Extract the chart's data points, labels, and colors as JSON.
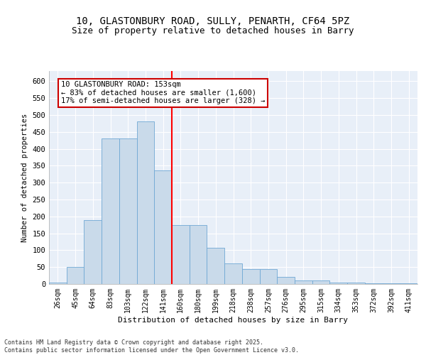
{
  "title1": "10, GLASTONBURY ROAD, SULLY, PENARTH, CF64 5PZ",
  "title2": "Size of property relative to detached houses in Barry",
  "xlabel": "Distribution of detached houses by size in Barry",
  "ylabel": "Number of detached properties",
  "categories": [
    "26sqm",
    "45sqm",
    "64sqm",
    "83sqm",
    "103sqm",
    "122sqm",
    "141sqm",
    "160sqm",
    "180sqm",
    "199sqm",
    "218sqm",
    "238sqm",
    "257sqm",
    "276sqm",
    "295sqm",
    "315sqm",
    "334sqm",
    "353sqm",
    "372sqm",
    "392sqm",
    "411sqm"
  ],
  "values": [
    5,
    50,
    190,
    430,
    430,
    480,
    335,
    175,
    175,
    108,
    60,
    45,
    45,
    20,
    10,
    10,
    5,
    5,
    3,
    2,
    3
  ],
  "bar_color": "#c9daea",
  "bar_edge_color": "#6fa8d4",
  "vline_color": "red",
  "annotation_text": "10 GLASTONBURY ROAD: 153sqm\n← 83% of detached houses are smaller (1,600)\n17% of semi-detached houses are larger (328) →",
  "annotation_box_color": "#cc0000",
  "annotation_bg": "white",
  "ylim": [
    0,
    630
  ],
  "yticks": [
    0,
    50,
    100,
    150,
    200,
    250,
    300,
    350,
    400,
    450,
    500,
    550,
    600
  ],
  "footer": "Contains HM Land Registry data © Crown copyright and database right 2025.\nContains public sector information licensed under the Open Government Licence v3.0.",
  "bg_color": "#e8eff8",
  "grid_color": "white",
  "title_fontsize": 10,
  "subtitle_fontsize": 9,
  "bar_width": 1.0
}
